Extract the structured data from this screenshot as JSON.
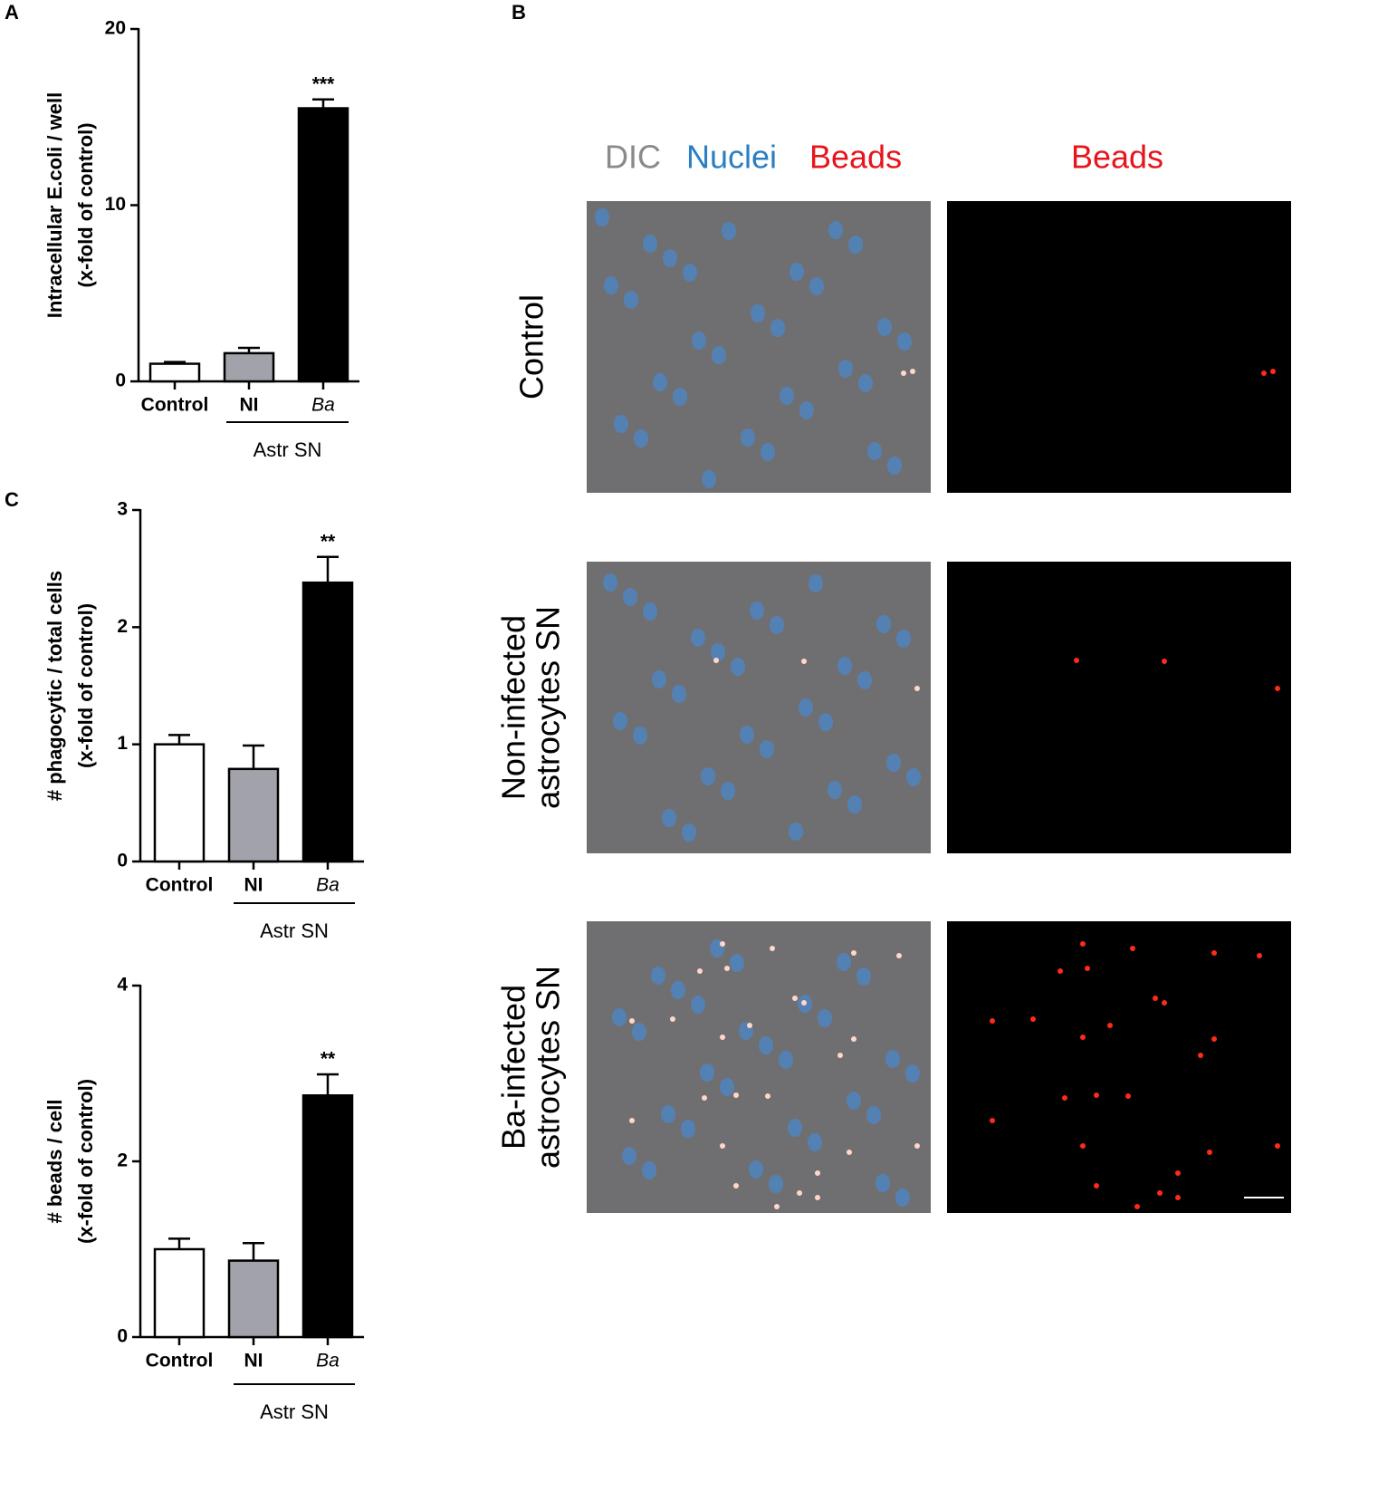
{
  "chart_data": [
    {
      "type": "bar",
      "panel": "A",
      "ylabel": [
        "Intracellular E.coli / well",
        "(x-fold of control)"
      ],
      "categories": [
        "Control",
        "NI",
        "Ba"
      ],
      "values": [
        1,
        1.6,
        15.5
      ],
      "errors": [
        0.1,
        0.3,
        0.5
      ],
      "colors": [
        "#ffffff",
        "#a2a2aa",
        "#000000"
      ],
      "annotations": [
        null,
        null,
        "***"
      ],
      "group_label": "Astr SN",
      "ylim": [
        0,
        20
      ],
      "yticks": [
        0,
        10,
        20
      ]
    },
    {
      "type": "bar",
      "panel": "C",
      "ylabel": [
        "# phagocytic / total cells",
        "(x-fold of control)"
      ],
      "categories": [
        "Control",
        "NI",
        "Ba"
      ],
      "values": [
        1.0,
        0.79,
        2.38
      ],
      "errors": [
        0.08,
        0.2,
        0.22
      ],
      "colors": [
        "#ffffff",
        "#a2a2aa",
        "#000000"
      ],
      "annotations": [
        null,
        null,
        "**"
      ],
      "group_label": "Astr SN",
      "ylim": [
        0,
        3
      ],
      "yticks": [
        0,
        1,
        2,
        3
      ]
    },
    {
      "type": "bar",
      "ylabel": [
        "# beads / cell",
        "(x-fold of control)"
      ],
      "categories": [
        "Control",
        "NI",
        "Ba"
      ],
      "values": [
        1.0,
        0.87,
        2.75
      ],
      "errors": [
        0.12,
        0.2,
        0.24
      ],
      "colors": [
        "#ffffff",
        "#a2a2aa",
        "#000000"
      ],
      "annotations": [
        null,
        null,
        "**"
      ],
      "group_label": "Astr SN",
      "ylim": [
        0,
        4
      ],
      "yticks": [
        0,
        2,
        4
      ]
    }
  ],
  "panel_b": {
    "label": "B",
    "merged_header": [
      "DIC",
      "Nuclei",
      "Beads"
    ],
    "beads_header": "Beads",
    "rows": [
      [
        "Control"
      ],
      [
        "Non-infected",
        "astrocytes SN"
      ],
      [
        "Ba-infected",
        "astrocytes SN"
      ]
    ]
  }
}
